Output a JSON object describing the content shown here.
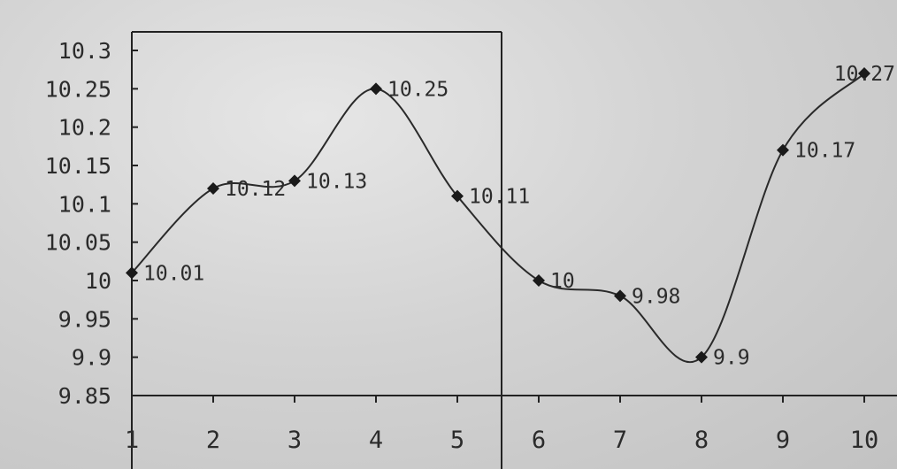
{
  "chart_data": {
    "type": "line",
    "title": "",
    "xlabel": "",
    "ylabel": "",
    "x": [
      1,
      2,
      3,
      4,
      5,
      6,
      7,
      8,
      9,
      10
    ],
    "series": [
      {
        "values": [
          10.01,
          10.12,
          10.13,
          10.25,
          10.11,
          10,
          9.98,
          9.9,
          10.17,
          10.27
        ]
      }
    ],
    "data_labels": [
      "10.01",
      "10.12",
      "10.13",
      "10.25",
      "10.11",
      "10",
      "9.98",
      "9.9",
      "10.17",
      "10.27"
    ],
    "ylim": [
      9.85,
      10.3
    ],
    "yticks": [
      "9.85",
      "9.9",
      "9.95",
      "10",
      "10.05",
      "10.1",
      "10.15",
      "10.2",
      "10.25",
      "10.3"
    ],
    "xticks": [
      "1",
      "2",
      "3",
      "4",
      "5",
      "6",
      "7",
      "8",
      "9",
      "10"
    ],
    "grid": false,
    "legend": "none",
    "marker": "diamond",
    "smooth": true,
    "colors": {
      "line": "#2a2a2a",
      "marker": "#1a1a1a",
      "text": "#2b2b2b",
      "background": "#d6d6d6"
    }
  }
}
